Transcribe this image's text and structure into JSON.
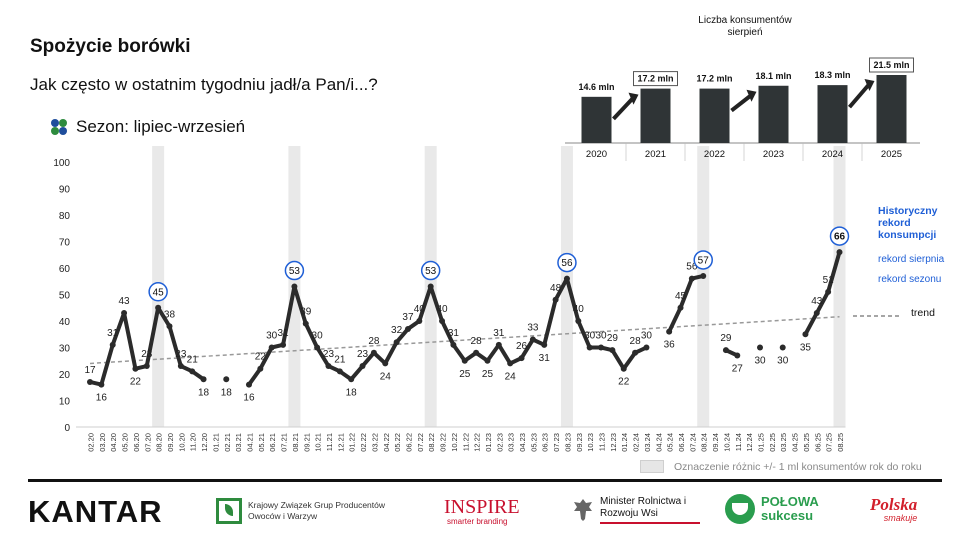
{
  "header": {
    "title": "Spożycie borówki",
    "subtitle": "Jak często w ostatnim tygodniu jadł/a Pan/i...?",
    "season_label": "Sezon: lipiec-wrzesień",
    "season_icon": "berries-icon"
  },
  "inset": {
    "title": "Liczba konsumentów sierpień"
  },
  "chart_data": [
    {
      "type": "line",
      "ylim": [
        0,
        100
      ],
      "yticks": [
        0,
        10,
        20,
        30,
        40,
        50,
        60,
        70,
        80,
        90,
        100
      ],
      "grid": false,
      "categories": [
        "02.20",
        "03.20",
        "04.20",
        "05.20",
        "06.20",
        "07.20",
        "08.20",
        "09.20",
        "10.20",
        "11.20",
        "12.20",
        "01.21",
        "02.21",
        "03.21",
        "04.21",
        "05.21",
        "06.21",
        "07.21",
        "08.21",
        "09.21",
        "10.21",
        "11.21",
        "12.21",
        "01.22",
        "02.22",
        "03.22",
        "04.22",
        "05.22",
        "06.22",
        "07.22",
        "08.22",
        "09.22",
        "10.22",
        "11.22",
        "12.22",
        "01.23",
        "02.23",
        "03.23",
        "04.23",
        "05.23",
        "06.23",
        "07.23",
        "08.23",
        "09.23",
        "10.23",
        "11.23",
        "12.23",
        "01.24",
        "02.24",
        "03.24",
        "04.24",
        "05.24",
        "06.24",
        "07.24",
        "08.24",
        "09.24",
        "10.24",
        "11.24",
        "12.24",
        "01.25",
        "02.25",
        "03.25",
        "04.25",
        "05.25",
        "06.25",
        "07.25",
        "08.25"
      ],
      "series": [
        {
          "values": [
            17,
            16,
            31,
            43,
            22,
            23,
            45,
            38,
            23,
            21,
            18,
            null,
            18,
            null,
            16,
            22,
            30,
            31,
            53,
            39,
            30,
            23,
            21,
            18,
            23,
            28,
            24,
            32,
            37,
            40,
            53,
            40,
            31,
            25,
            28,
            25,
            31,
            24,
            26,
            33,
            31,
            48,
            56,
            40,
            30,
            30,
            29,
            22,
            28,
            30,
            null,
            36,
            45,
            56,
            57,
            null,
            29,
            27,
            null,
            30,
            null,
            30,
            null,
            35,
            43,
            51,
            66
          ],
          "labels": [
            "17",
            "16",
            "31",
            "43",
            "22",
            "23",
            "45",
            "38",
            "23",
            "21",
            "18",
            "",
            "18",
            "",
            "16",
            "22",
            "30",
            "31",
            "53",
            "39",
            "30",
            "23",
            "21",
            "18",
            "23",
            "28",
            "24",
            "32",
            "37",
            "40",
            "53",
            "40",
            "31",
            "25",
            "28",
            "25",
            "31",
            "24",
            "26",
            "33",
            "31",
            "48",
            "56",
            "40",
            "30",
            "30",
            "29",
            "22",
            "28",
            "30",
            "",
            "36",
            "45",
            "56",
            "57",
            "",
            "29",
            "27",
            "",
            "30",
            "",
            "30",
            "",
            "35",
            "43",
            "51",
            "66"
          ],
          "circled": [
            "45",
            "53",
            "53",
            "56",
            "57",
            "66"
          ]
        }
      ],
      "trend_label": "trend",
      "highlight_periods": [
        "08.20",
        "08.21",
        "08.22",
        "08.23",
        "08.24",
        "08.25"
      ],
      "record_annotation": "Historyczny rekord konsumpcji",
      "record_august": "rekord sierpnia",
      "record_season": "rekord sezonu",
      "legend_note": "Oznaczenie różnic +/- 1 ml konsumentów rok do roku",
      "accent_color": "#1f5fd6",
      "line_color": "#2b2b2b",
      "highlight_color": "#e9e9e9"
    },
    {
      "type": "bar",
      "title": "Liczba konsumentów sierpień",
      "categories": [
        "2020",
        "2021",
        "2022",
        "2023",
        "2024",
        "2025"
      ],
      "values": [
        14.6,
        17.2,
        17.2,
        18.1,
        18.3,
        21.5
      ],
      "labels": [
        "14.6 mln",
        "17.2 mln",
        "17.2 mln",
        "18.1 mln",
        "18.3 mln",
        "21.5 mln"
      ],
      "boxed": [
        "17.2 mln",
        "21.5 mln"
      ],
      "bar_color": "#2f3436"
    }
  ],
  "footer": {
    "legend_note": "Oznaczenie różnic +/- 1 ml konsumentów rok do roku",
    "logos": {
      "kantar": "KANTAR",
      "kzgp": "Krajowy Związek Grup Producentów Owoców i Warzyw",
      "inspire": "INSPIRE",
      "inspire_sub": "smarter branding",
      "minister": "Minister Rolnictwa i Rozwoju Wsi",
      "polowa": "POŁOWA sukcesu",
      "polska": "Polska",
      "polska_sub": "smakuje"
    }
  }
}
